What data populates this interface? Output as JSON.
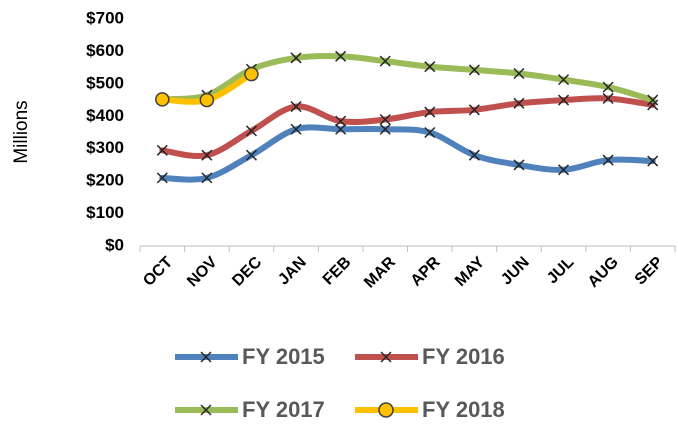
{
  "chart_data": {
    "type": "line",
    "y_label": "Millions",
    "categories": [
      "OCT",
      "NOV",
      "DEC",
      "JAN",
      "FEB",
      "MAR",
      "APR",
      "MAY",
      "JUN",
      "JUL",
      "AUG",
      "SEP"
    ],
    "series": [
      {
        "name": "FY 2015",
        "color": "#4f81bd",
        "marker": "x",
        "values": [
          210,
          210,
          280,
          360,
          360,
          360,
          350,
          280,
          250,
          235,
          265,
          262
        ]
      },
      {
        "name": "FY 2016",
        "color": "#c0504d",
        "marker": "x",
        "values": [
          295,
          280,
          355,
          430,
          385,
          390,
          413,
          420,
          440,
          450,
          455,
          435
        ]
      },
      {
        "name": "FY 2017",
        "color": "#9bbb59",
        "marker": "x",
        "values": [
          452,
          465,
          545,
          580,
          585,
          570,
          553,
          543,
          532,
          513,
          490,
          450
        ]
      },
      {
        "name": "FY 2018",
        "color": "#ffc000",
        "marker": "circle",
        "values": [
          452,
          450,
          530,
          null,
          null,
          null,
          null,
          null,
          null,
          null,
          null,
          null
        ]
      }
    ],
    "ylim": [
      0,
      700
    ],
    "yticks": [
      {
        "value": 0,
        "label": "$0"
      },
      {
        "value": 100,
        "label": "$100"
      },
      {
        "value": 200,
        "label": "$200"
      },
      {
        "value": 300,
        "label": "$300"
      },
      {
        "value": 400,
        "label": "$400"
      },
      {
        "value": 500,
        "label": "$500"
      },
      {
        "value": 600,
        "label": "$600"
      },
      {
        "value": 700,
        "label": "$700"
      }
    ],
    "grid": false,
    "smooth": true
  }
}
